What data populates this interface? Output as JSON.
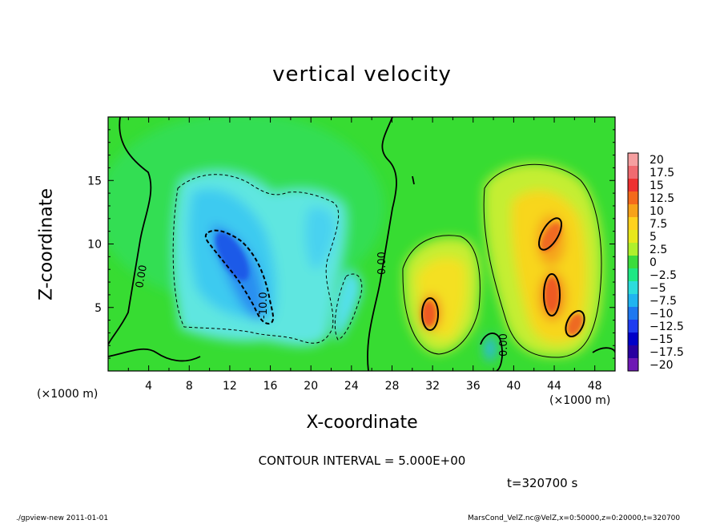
{
  "chart_data": {
    "type": "heatmap",
    "title": "vertical velocity",
    "xlabel": "X-coordinate",
    "ylabel": "Z-coordinate",
    "x_unit_label": "(×1000 m)",
    "xlim": [
      0,
      50
    ],
    "ylim": [
      0,
      20
    ],
    "x_ticks": [
      "4",
      "8",
      "12",
      "16",
      "20",
      "24",
      "28",
      "32",
      "36",
      "40",
      "44",
      "48"
    ],
    "y_ticks": [
      "5",
      "10",
      "15"
    ],
    "colorbar_labels": [
      "20",
      "17.5",
      "15",
      "12.5",
      "10",
      "7.5",
      "5",
      "2.5",
      "0",
      "−2.5",
      "−5",
      "−7.5",
      "−10",
      "−12.5",
      "−15",
      "−17.5",
      "−20"
    ],
    "colorbar_colors": [
      "#f59fa0",
      "#f06a70",
      "#ee3030",
      "#f46a1c",
      "#f7a21a",
      "#ffd21e",
      "#e8e81c",
      "#aff02c",
      "#3cdc3c",
      "#1ee884",
      "#2cdcdc",
      "#20b4f0",
      "#1e78f0",
      "#1e3cf0",
      "#0000c8",
      "#2800a0",
      "#6e18b4"
    ],
    "contour_interval": "CONTOUR INTERVAL = 5.000E+00",
    "contour_labels": [
      "0.00",
      "0.00",
      "-10.0",
      "0.00"
    ],
    "features": [
      {
        "kind": "downdraft",
        "x": 13,
        "z": 8.5,
        "value": -12
      },
      {
        "kind": "downdraft",
        "x": 21,
        "z": 9,
        "value": -7
      },
      {
        "kind": "updraft",
        "x": 31.5,
        "z": 5.5,
        "value": 12
      },
      {
        "kind": "updraft",
        "x": 43.5,
        "z": 8.5,
        "value": 12
      },
      {
        "kind": "updraft",
        "x": 46,
        "z": 4,
        "value": 12
      }
    ],
    "time": "t=320700 s",
    "footer_left": "./gpview-new  2011-01-01",
    "footer_right": "MarsCond_VelZ.nc@VelZ,x=0:50000,z=0:20000,t=320700"
  }
}
